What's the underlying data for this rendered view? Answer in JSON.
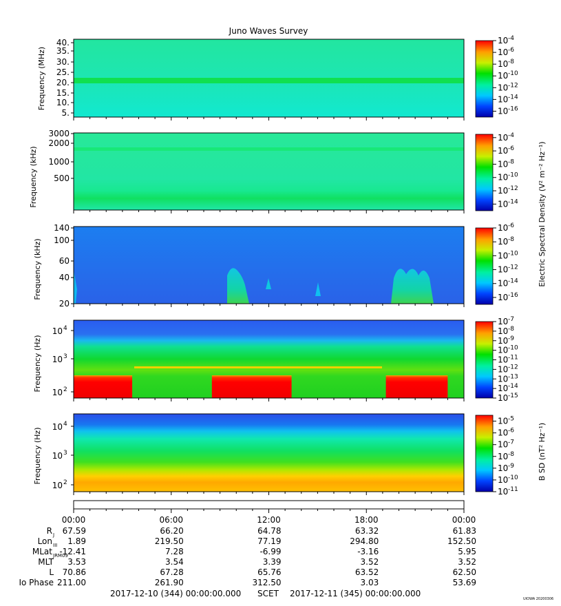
{
  "title": "Juno Waves Survey",
  "chart_data": [
    {
      "type": "heatmap",
      "ylabel": "Frequency (MHz)",
      "y_ticks": [
        "40.",
        "35.",
        "30.",
        "25.",
        "20.",
        "15.",
        "10.",
        "5."
      ],
      "ylim": [
        3.5,
        41
      ],
      "colorbar": {
        "ticks": [
          "-4",
          "-6",
          "-8",
          "-10",
          "-12",
          "-14",
          "-16"
        ],
        "range": [
          -17,
          -4
        ],
        "base": "10"
      },
      "features": [
        {
          "kind": "band",
          "freq_mhz": 21
        }
      ]
    },
    {
      "type": "heatmap",
      "ylabel": "Frequency (kHz)",
      "y_ticks": [
        "3000",
        "2000",
        "1000",
        "500"
      ],
      "colorbar": {
        "ticks": [
          "-4",
          "-6",
          "-8",
          "-10",
          "-12",
          "-14"
        ],
        "range": [
          -15,
          -3.5
        ],
        "base": "10"
      }
    },
    {
      "type": "heatmap",
      "ylabel": "Frequency (kHz)",
      "y_ticks": [
        "140",
        "100",
        "60",
        "40",
        "20"
      ],
      "colorbar": {
        "ticks": [
          "-6",
          "-8",
          "-10",
          "-12",
          "-14",
          "-16"
        ],
        "range": [
          -17,
          -6
        ],
        "base": "10"
      },
      "colorbar_label": "Electric Spectral Density (V² m⁻² Hz⁻¹)",
      "features": [
        {
          "kind": "burst",
          "start_hour": 9.4,
          "end_hour": 11.0
        },
        {
          "kind": "burst",
          "start_hour": 19.6,
          "end_hour": 22.4
        }
      ]
    },
    {
      "type": "heatmap",
      "ylabel": "Frequency (Hz)",
      "y_ticks": [
        {
          "base": "10",
          "exp": "4"
        },
        {
          "base": "10",
          "exp": "3"
        },
        {
          "base": "10",
          "exp": "2"
        }
      ],
      "colorbar": {
        "ticks": [
          "-7",
          "-8",
          "-9",
          "-10",
          "-11",
          "-12",
          "-13",
          "-14",
          "-15"
        ],
        "range": [
          -15,
          -7
        ],
        "base": "10"
      },
      "features": [
        {
          "kind": "intense_low",
          "start_hour": 0.0,
          "end_hour": 3.6
        },
        {
          "kind": "intense_low",
          "start_hour": 8.5,
          "end_hour": 13.4
        },
        {
          "kind": "intense_low",
          "start_hour": 19.2,
          "end_hour": 23.0
        }
      ]
    },
    {
      "type": "heatmap",
      "ylabel": "Frequency (Hz)",
      "y_ticks": [
        {
          "base": "10",
          "exp": "4"
        },
        {
          "base": "10",
          "exp": "3"
        },
        {
          "base": "10",
          "exp": "2"
        }
      ],
      "colorbar": {
        "ticks": [
          "-5",
          "-6",
          "-7",
          "-8",
          "-9",
          "-10",
          "-11"
        ],
        "range": [
          -11,
          -4.5
        ],
        "base": "10"
      },
      "colorbar_label": "B SD (nT² Hz⁻¹)"
    }
  ],
  "x_axis": {
    "tick_labels": [
      "00:00",
      "06:00",
      "12:00",
      "18:00",
      "00:00"
    ]
  },
  "ephemeris": [
    {
      "label": "R",
      "sub": "J",
      "values": [
        "67.59",
        "66.20",
        "64.78",
        "63.32",
        "61.83"
      ]
    },
    {
      "label": "Lon",
      "sub": "III",
      "values": [
        "1.89",
        "219.50",
        "77.19",
        "294.80",
        "152.50"
      ]
    },
    {
      "label": "MLat",
      "sub": "JRM09",
      "values": [
        "-12.41",
        "7.28",
        "-6.99",
        "-3.16",
        "5.95"
      ]
    },
    {
      "label": "MLT",
      "sub": "",
      "values": [
        "3.53",
        "3.54",
        "3.39",
        "3.52",
        "3.52"
      ]
    },
    {
      "label": "L",
      "sub": "",
      "values": [
        "70.86",
        "67.28",
        "65.76",
        "63.52",
        "62.50"
      ]
    },
    {
      "label": "Io Phase",
      "sub": "",
      "values": [
        "211.00",
        "261.90",
        "312.50",
        "3.03",
        "53.69"
      ]
    }
  ],
  "footer": {
    "start": "2017-12-10 (344) 00:00:00.000",
    "scet": "SCET",
    "end": "2017-12-11 (345) 00:00:00.000",
    "stamp": "UIOWA 20200306"
  }
}
